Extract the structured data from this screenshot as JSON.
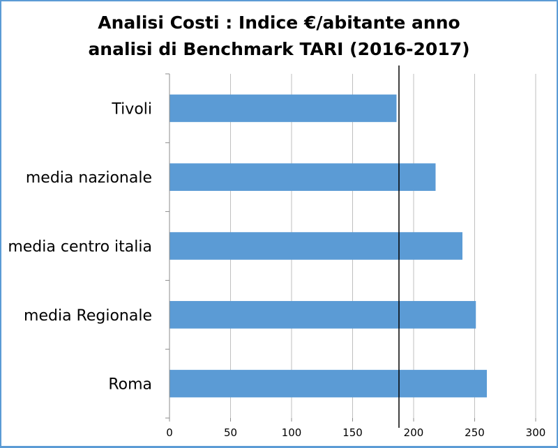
{
  "title_lines": [
    "Analisi Costi : Indice €/abitante anno",
    "analisi di Benchmark TARI (2016-2017)"
  ],
  "chart_data": {
    "type": "bar",
    "orientation": "horizontal",
    "categories": [
      "Tivoli",
      "media nazionale",
      "media centro italia",
      "media Regionale",
      "Roma"
    ],
    "values": [
      186,
      218,
      240,
      251,
      260
    ],
    "xlim": [
      0,
      300
    ],
    "xticks": [
      0,
      50,
      100,
      150,
      200,
      250,
      300
    ],
    "xtick_labels": [
      "0",
      "50",
      "100",
      "150",
      "200",
      "250",
      "300"
    ],
    "reference_line": 188,
    "grid": "vertical",
    "bar_color": "#5b9bd5",
    "legend": "none"
  }
}
